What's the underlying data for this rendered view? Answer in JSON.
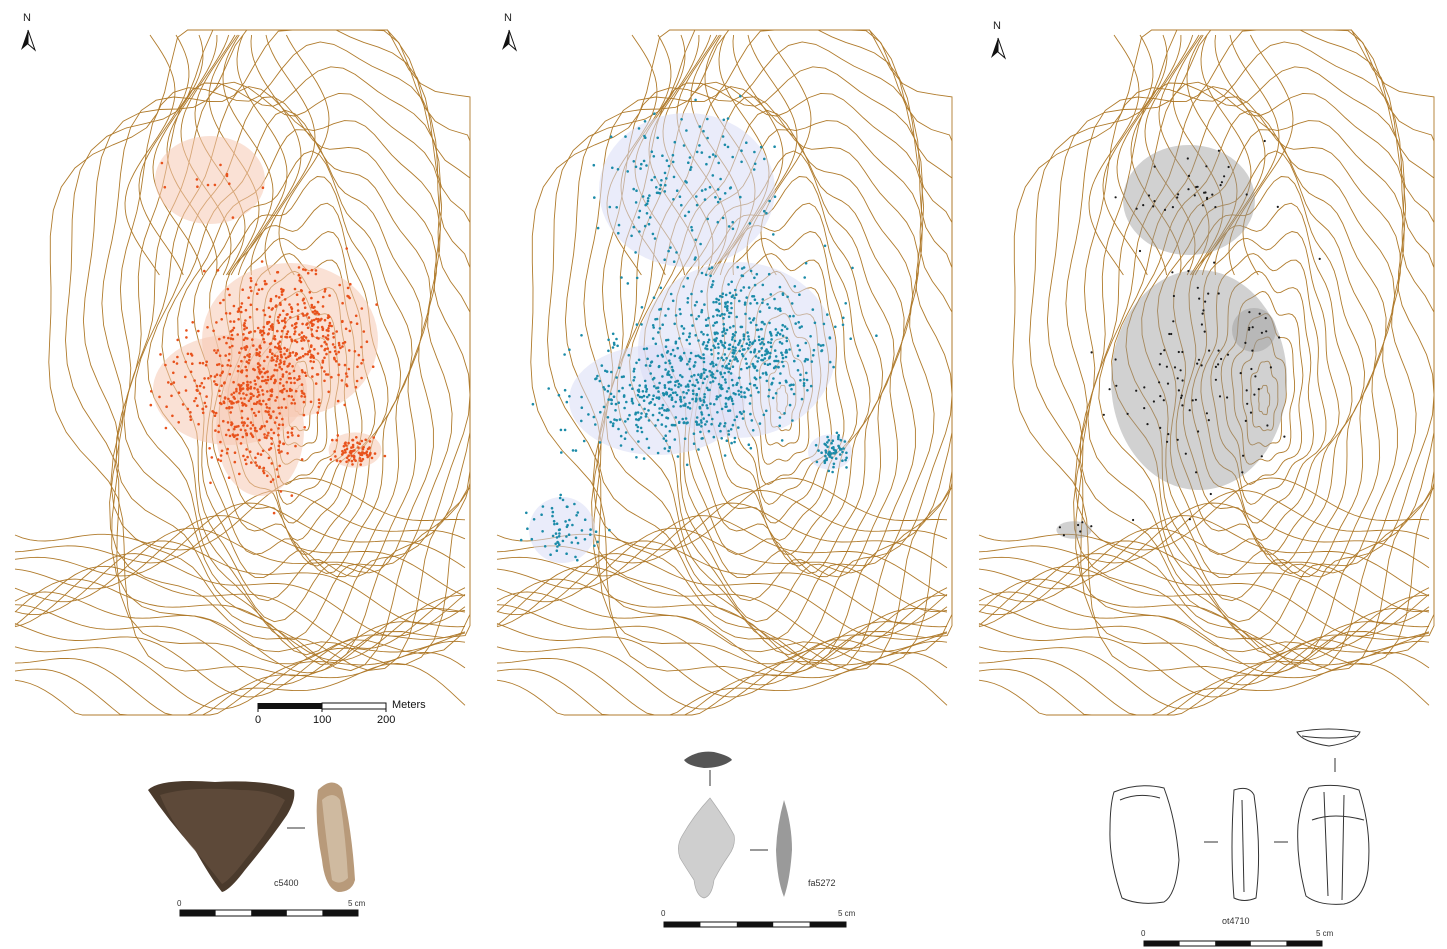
{
  "north_label": "N",
  "map_scalebar": {
    "labels": [
      "0",
      "100",
      "200"
    ],
    "unit": "Meters"
  },
  "colors": {
    "contour": "#b07b2c",
    "orange": "#e8521c",
    "blue": "#1b8ba8",
    "blue_halo": "#d9dcf5",
    "grey": "#1a1a1a"
  },
  "panels": [
    {
      "specimen_code": "c5400",
      "cm_ticks": [
        "0",
        "5 cm"
      ],
      "point_color": "orange"
    },
    {
      "specimen_code": "fa5272",
      "cm_ticks": [
        "0",
        "5 cm"
      ],
      "point_color": "blue"
    },
    {
      "specimen_code": "ot4710",
      "cm_ticks": [
        "0",
        "5 cm"
      ],
      "point_color": "grey"
    }
  ]
}
